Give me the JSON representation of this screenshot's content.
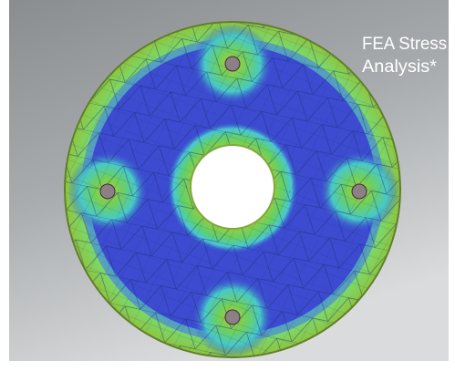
{
  "caption": {
    "lines": [
      "FEA Stress",
      "Analysis*"
    ]
  }
}
